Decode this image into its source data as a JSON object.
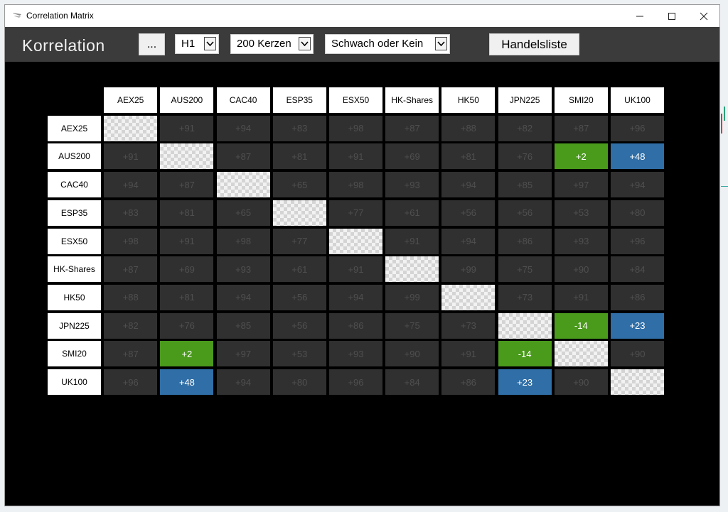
{
  "window": {
    "title": "Correlation Matrix",
    "controls": [
      "minimize",
      "maximize",
      "close"
    ]
  },
  "toolbar": {
    "app_title": "Korrelation",
    "menu_button_label": "...",
    "timeframe": {
      "value": "H1"
    },
    "candles": {
      "value": "200 Kerzen"
    },
    "strength_filter": {
      "value": "Schwach oder Kein"
    },
    "trade_list_button_label": "Handelsliste"
  },
  "matrix": {
    "symbols": [
      "AEX25",
      "AUS200",
      "CAC40",
      "ESP35",
      "ESX50",
      "HK-Shares",
      "HK50",
      "JPN225",
      "SMI20",
      "UK100"
    ],
    "rows": [
      [
        "",
        "+91",
        "+94",
        "+83",
        "+98",
        "+87",
        "+88",
        "+82",
        "+87",
        "+96"
      ],
      [
        "+91",
        "",
        "+87",
        "+81",
        "+91",
        "+69",
        "+81",
        "+76",
        "+2",
        "+48"
      ],
      [
        "+94",
        "+87",
        "",
        "+65",
        "+98",
        "+93",
        "+94",
        "+85",
        "+97",
        "+94"
      ],
      [
        "+83",
        "+81",
        "+65",
        "",
        "+77",
        "+61",
        "+56",
        "+56",
        "+53",
        "+80"
      ],
      [
        "+98",
        "+91",
        "+98",
        "+77",
        "",
        "+91",
        "+94",
        "+86",
        "+93",
        "+96"
      ],
      [
        "+87",
        "+69",
        "+93",
        "+61",
        "+91",
        "",
        "+99",
        "+75",
        "+90",
        "+84"
      ],
      [
        "+88",
        "+81",
        "+94",
        "+56",
        "+94",
        "+99",
        "",
        "+73",
        "+91",
        "+86"
      ],
      [
        "+82",
        "+76",
        "+85",
        "+56",
        "+86",
        "+75",
        "+73",
        "",
        "-14",
        "+23"
      ],
      [
        "+87",
        "+2",
        "+97",
        "+53",
        "+93",
        "+90",
        "+91",
        "-14",
        "",
        "+90"
      ],
      [
        "+96",
        "+48",
        "+94",
        "+80",
        "+96",
        "+84",
        "+86",
        "+23",
        "+90",
        ""
      ]
    ],
    "highlights": [
      {
        "row": 1,
        "col": 8,
        "style": "green"
      },
      {
        "row": 1,
        "col": 9,
        "style": "blue"
      },
      {
        "row": 7,
        "col": 8,
        "style": "green"
      },
      {
        "row": 7,
        "col": 9,
        "style": "blue"
      },
      {
        "row": 8,
        "col": 1,
        "style": "green"
      },
      {
        "row": 8,
        "col": 7,
        "style": "green"
      },
      {
        "row": 9,
        "col": 1,
        "style": "blue"
      },
      {
        "row": 9,
        "col": 7,
        "style": "blue"
      }
    ]
  },
  "colors": {
    "background": "#000000",
    "toolbar": "#3b3b3b",
    "cell_dark": "#303030",
    "cell_text_dark": "#4f4f4f",
    "highlight_green": "#4a9a1c",
    "highlight_blue": "#2f6ea6"
  }
}
